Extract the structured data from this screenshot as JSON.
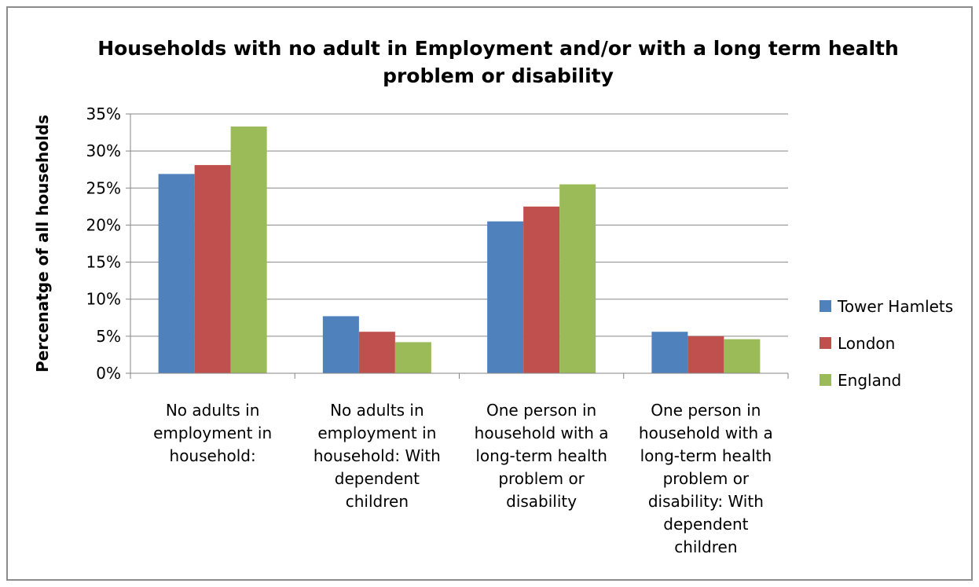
{
  "chart_data": {
    "type": "bar",
    "title": "Households  with no adult in Employment and/or with a long term health problem or disability",
    "title_lines": [
      "Households  with no adult in Employment and/or with a long term health",
      "problem or disability"
    ],
    "ylabel": "Percenatge of all households",
    "xlabel": "",
    "ylim": [
      0,
      0.35
    ],
    "y_ticks": [
      0,
      0.05,
      0.1,
      0.15,
      0.2,
      0.25,
      0.3,
      0.35
    ],
    "y_tick_labels": [
      "0%",
      "5%",
      "10%",
      "15%",
      "20%",
      "25%",
      "30%",
      "35%"
    ],
    "grid": true,
    "legend_position": "right",
    "categories": [
      "No adults in employment in household:",
      "No adults in employment in household: With dependent children",
      "One person in household with a long-term health problem or disability",
      "One person in household with a long-term health problem or disability: With dependent children"
    ],
    "category_label_lines": [
      [
        "No adults in",
        "employment in",
        "household:"
      ],
      [
        "No adults in",
        "employment in",
        "household: With",
        "dependent",
        "children"
      ],
      [
        "One person in",
        "household with a",
        "long-term health",
        "problem or",
        "disability"
      ],
      [
        "One person in",
        "household with a",
        "long-term health",
        "problem or",
        "disability: With",
        "dependent",
        "children"
      ]
    ],
    "series": [
      {
        "name": "Tower Hamlets",
        "color": "#4F81BD",
        "values": [
          0.269,
          0.077,
          0.205,
          0.056
        ]
      },
      {
        "name": "London",
        "color": "#C0504D",
        "values": [
          0.281,
          0.056,
          0.225,
          0.05
        ]
      },
      {
        "name": "England",
        "color": "#9BBB59",
        "values": [
          0.333,
          0.042,
          0.255,
          0.046
        ]
      }
    ]
  }
}
